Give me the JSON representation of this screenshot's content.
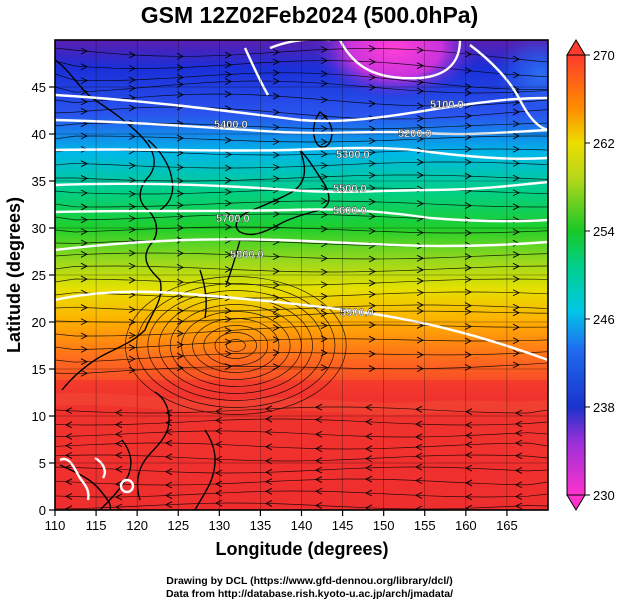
{
  "title": "GSM 12Z02Feb2024 (500.0hPa)",
  "x_axis": {
    "label": "Longitude (degrees)",
    "ticks": [
      "110",
      "115",
      "120",
      "125",
      "130",
      "135",
      "140",
      "145",
      "150",
      "155",
      "160",
      "165"
    ],
    "range": [
      110,
      170
    ]
  },
  "y_axis": {
    "label": "Latitude  (degrees)",
    "ticks": [
      "0",
      "5",
      "10",
      "15",
      "20",
      "25",
      "30",
      "35",
      "40",
      "45"
    ],
    "range": [
      0,
      50
    ]
  },
  "colorbar": {
    "ticks": [
      "230",
      "238",
      "246",
      "254",
      "262",
      "270"
    ],
    "range": [
      230,
      270
    ],
    "colors": [
      "#ff33cc",
      "#1a33cc",
      "#00c8e6",
      "#19c828",
      "#eddc00",
      "#ff8c00",
      "#ff3b2e"
    ]
  },
  "contour_labels": [
    "5100.0",
    "5200.0",
    "5300.0",
    "5400.0",
    "5500.0",
    "5600.0",
    "5700.0",
    "5800.0",
    "5900.0"
  ],
  "credits": {
    "drawing": "Drawing by DCL (https://www.gfd-dennou.org/library/dcl/)",
    "data": "Data from http://database.rish.kyoto-u.ac.jp/arch/jmadata/"
  }
}
